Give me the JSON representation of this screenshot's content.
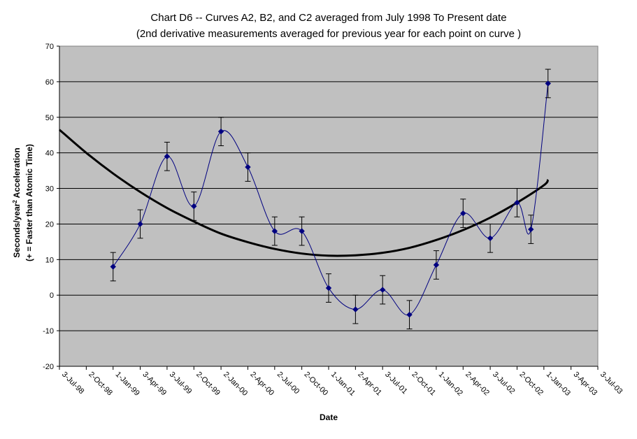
{
  "chart_data": {
    "type": "line",
    "title": "Chart D6 -- Curves A2, B2, and C2 averaged from July 1998 To Present date",
    "subtitle": "(2nd derivative measurements averaged for previous year for each point on curve )",
    "xlabel": "Date",
    "ylabel_line1": "Seconds/year",
    "ylabel_sup": "2",
    "ylabel_line1_suffix": " Acceleration",
    "ylabel_line2": "(+ = Faster than Atomic Time)",
    "ylim": [
      -20,
      70
    ],
    "y_ticks": [
      -20,
      -10,
      0,
      10,
      20,
      30,
      40,
      50,
      60,
      70
    ],
    "x_ticks": [
      "3-Jul-98",
      "2-Oct-98",
      "1-Jan-99",
      "3-Apr-99",
      "3-Jul-99",
      "2-Oct-99",
      "2-Jan-00",
      "2-Apr-00",
      "2-Jul-00",
      "2-Oct-00",
      "1-Jan-01",
      "2-Apr-01",
      "3-Jul-01",
      "2-Oct-01",
      "1-Jan-02",
      "2-Apr-02",
      "3-Jul-02",
      "2-Oct-02",
      "1-Jan-03",
      "3-Apr-03",
      "3-Jul-03"
    ],
    "grid": true,
    "plot_background": "#c0c0c0",
    "series": [
      {
        "color": "#000080",
        "x": [
          "1-Jan-99",
          "3-Apr-99",
          "3-Jul-99",
          "2-Oct-99",
          "2-Jan-00",
          "2-Apr-00",
          "2-Jul-00",
          "2-Oct-00",
          "1-Jan-01",
          "2-Apr-01",
          "3-Jul-01",
          "2-Oct-01",
          "1-Jan-02",
          "2-Apr-02",
          "3-Jul-02",
          "2-Oct-02",
          "18-Nov-02",
          "15-Jan-03"
        ],
        "values": [
          8,
          20,
          39,
          25,
          46,
          36,
          18,
          18,
          2,
          -4,
          1.5,
          -5.5,
          8.5,
          23,
          16,
          26,
          18.5,
          59.5
        ],
        "error": [
          4,
          4,
          4,
          4,
          4,
          4,
          4,
          4,
          4,
          4,
          4,
          4,
          4,
          4,
          4,
          4,
          4,
          4
        ]
      },
      {
        "color": "#000000",
        "fit": "polynomial trendline",
        "x": [
          "3-Jul-98",
          "2-Oct-98",
          "1-Jan-99",
          "3-Apr-99",
          "3-Jul-99",
          "2-Oct-99",
          "2-Jan-00",
          "2-Apr-00",
          "2-Jul-00",
          "2-Oct-00",
          "1-Jan-01",
          "2-Apr-01",
          "3-Jul-01",
          "2-Oct-01",
          "1-Jan-02",
          "2-Apr-02",
          "3-Jul-02",
          "2-Oct-02",
          "1-Jan-03",
          "15-Jan-03"
        ],
        "values": [
          46.5,
          40,
          34.2,
          29,
          24.5,
          20.7,
          17.3,
          14.9,
          13,
          11.7,
          11.1,
          11.2,
          11.9,
          13.3,
          15.5,
          18.3,
          21.8,
          26,
          30.9,
          32.5
        ]
      }
    ]
  }
}
